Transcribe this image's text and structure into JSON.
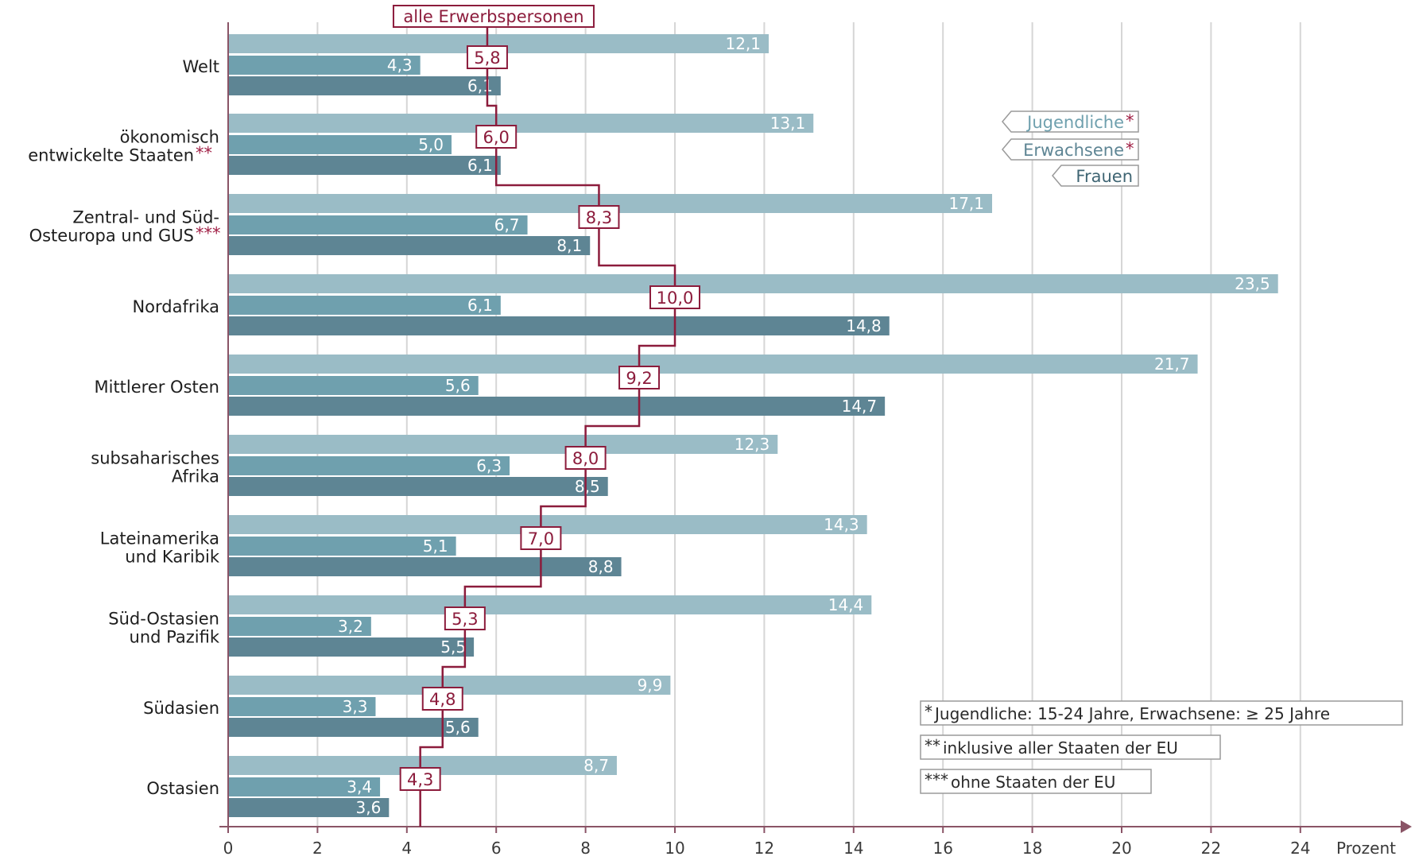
{
  "chart_data": {
    "type": "bar",
    "orientation": "horizontal",
    "categories": [
      [
        "Welt"
      ],
      [
        "ökonomisch",
        "entwickelte Staaten"
      ],
      [
        "Zentral- und Süd-",
        "Osteuropa und GUS"
      ],
      [
        "Nordafrika"
      ],
      [
        "Mittlerer Osten"
      ],
      [
        "subsaharisches",
        "Afrika"
      ],
      [
        "Lateinamerika",
        "und Karibik"
      ],
      [
        "Süd-Ostasien",
        "und Pazifik"
      ],
      [
        "Südasien"
      ],
      [
        "Ostasien"
      ]
    ],
    "category_marks": [
      "",
      "**",
      "***",
      "",
      "",
      "",
      "",
      "",
      "",
      ""
    ],
    "series": [
      {
        "name": "Jugendliche",
        "mark": "*",
        "color": "#9abcc6",
        "values": [
          12.1,
          13.1,
          17.1,
          23.5,
          21.7,
          12.3,
          14.3,
          14.4,
          9.9,
          8.7
        ],
        "labels": [
          "12,1",
          "13,1",
          "17,1",
          "23,5",
          "21,7",
          "12,3",
          "14,3",
          "14,4",
          "9,9",
          "8,7"
        ]
      },
      {
        "name": "Erwachsene",
        "mark": "*",
        "color": "#6fa0ae",
        "values": [
          4.3,
          5.0,
          6.7,
          6.1,
          5.6,
          6.3,
          5.1,
          3.2,
          3.3,
          3.4
        ],
        "labels": [
          "4,3",
          "5,0",
          "6,7",
          "6,1",
          "5,6",
          "6,3",
          "5,1",
          "3,2",
          "3,3",
          "3,4"
        ]
      },
      {
        "name": "Frauen",
        "mark": "",
        "color": "#5e8594",
        "values": [
          6.1,
          6.1,
          8.1,
          14.8,
          14.7,
          8.5,
          8.8,
          5.5,
          5.6,
          3.6
        ],
        "labels": [
          "6,1",
          "6,1",
          "8,1",
          "14,8",
          "14,7",
          "8,5",
          "8,8",
          "5,5",
          "5,6",
          "3,6"
        ]
      }
    ],
    "all_workers": {
      "name": "alle Erwerbspersonen",
      "color": "#8c1c3c",
      "values": [
        5.8,
        6.0,
        8.3,
        10.0,
        9.2,
        8.0,
        7.0,
        5.3,
        4.8,
        4.3
      ],
      "labels": [
        "5,8",
        "6,0",
        "8,3",
        "10,0",
        "9,2",
        "8,0",
        "7,0",
        "5,3",
        "4,8",
        "4,3"
      ]
    },
    "x_axis": {
      "unit_label": "Prozent",
      "range": [
        0,
        26
      ],
      "ticks": [
        0,
        2,
        4,
        6,
        8,
        10,
        12,
        14,
        16,
        18,
        20,
        22,
        24
      ],
      "tick_labels": [
        "0",
        "2",
        "4",
        "6",
        "8",
        "10",
        "12",
        "14",
        "16",
        "18",
        "20",
        "22",
        "24"
      ]
    },
    "grid": true,
    "legend_position": "top-right",
    "notes": [
      {
        "mark": "*",
        "text": "Jugendliche: 15-24 Jahre, Erwachsene: ≥ 25 Jahre"
      },
      {
        "mark": "**",
        "text": "inklusive aller Staaten der EU"
      },
      {
        "mark": "***",
        "text": "ohne Staaten der EU"
      }
    ],
    "notes_position": "bottom-right"
  }
}
